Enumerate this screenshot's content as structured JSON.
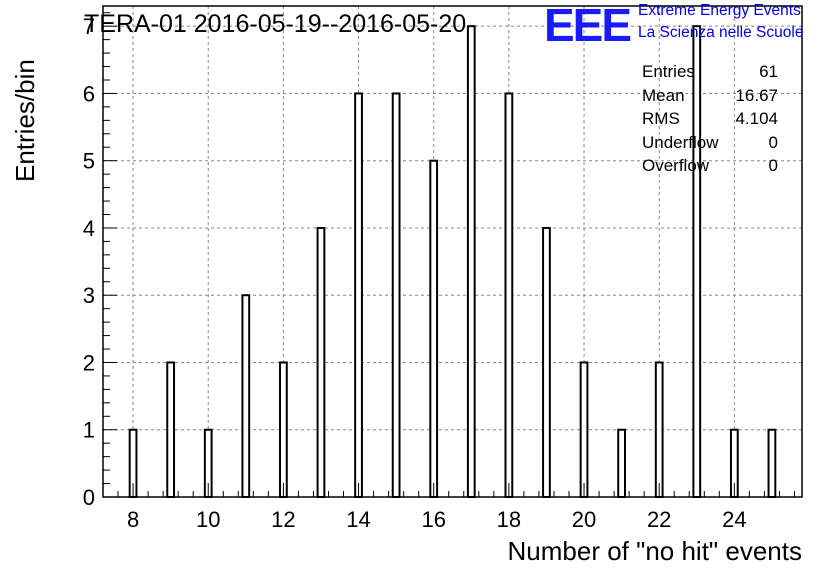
{
  "title": "TERA-01 2016-05-19--2016-05-20",
  "logo": {
    "mark": "EEE",
    "line1": "Extreme Energy Events",
    "line2": "La Scienza nelle Scuole"
  },
  "stats": [
    {
      "label": "Entries",
      "value": "61"
    },
    {
      "label": "Mean",
      "value": "16.67"
    },
    {
      "label": "RMS",
      "value": "4.104"
    },
    {
      "label": "Underflow",
      "value": "0"
    },
    {
      "label": "Overflow",
      "value": "0"
    }
  ],
  "chart_data": {
    "type": "bar",
    "title": "TERA-01 2016-05-19--2016-05-20",
    "xlabel": "Number of \"no hit\" events",
    "ylabel": "Entries/bin",
    "x": [
      8,
      9,
      10,
      11,
      12,
      13,
      14,
      15,
      16,
      17,
      18,
      19,
      20,
      21,
      22,
      23,
      24,
      25
    ],
    "values": [
      1,
      2,
      1,
      3,
      2,
      4,
      6,
      6,
      5,
      7,
      6,
      4,
      2,
      1,
      2,
      7,
      1,
      1
    ],
    "xlim": [
      7.2,
      25.8
    ],
    "ylim": [
      0,
      7.3
    ],
    "xticks": [
      8,
      10,
      12,
      14,
      16,
      18,
      20,
      22,
      24
    ],
    "yticks": [
      0,
      1,
      2,
      3,
      4,
      5,
      6,
      7
    ],
    "grid": true,
    "colors": {
      "bar_fill": "#ffffff",
      "bar_stroke": "#000000",
      "grid": "#888888",
      "logo": "#1a1aff",
      "logo_text": "#0000ee"
    }
  }
}
